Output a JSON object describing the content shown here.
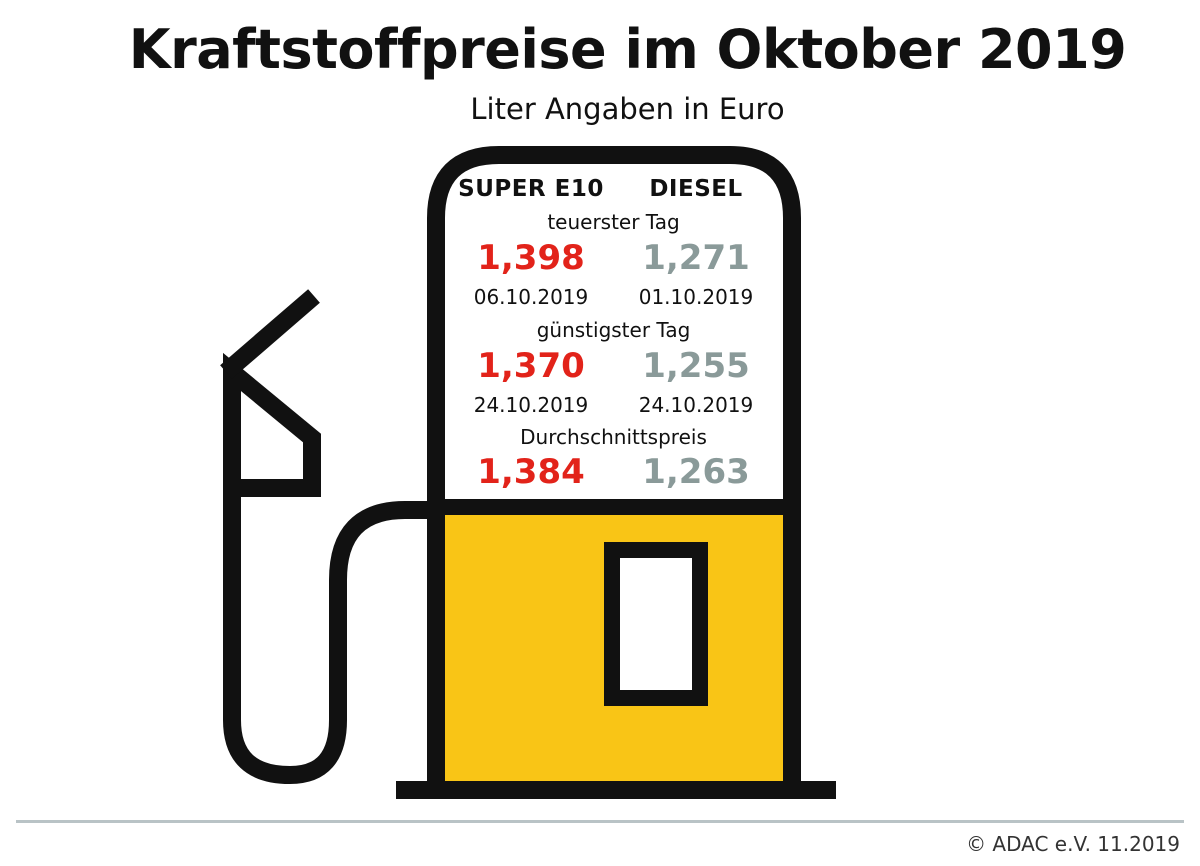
{
  "title": "Kraftstoffpreise im Oktober 2019",
  "subtitle": "Liter Angaben in Euro",
  "columns": {
    "left": "SUPER E10",
    "right": "DIESEL"
  },
  "sections": {
    "expensive": {
      "label": "teuerster Tag",
      "super_price": "1,398",
      "super_date": "06.10.2019",
      "diesel_price": "1,271",
      "diesel_date": "01.10.2019"
    },
    "cheap": {
      "label": "günstigster Tag",
      "super_price": "1,370",
      "super_date": "24.10.2019",
      "diesel_price": "1,255",
      "diesel_date": "24.10.2019"
    },
    "average": {
      "label": "Durchschnittspreis",
      "super_price": "1,384",
      "diesel_price": "1,263"
    }
  },
  "credit": "© ADAC e.V.  11.2019",
  "colors": {
    "super": "#e2231a",
    "diesel": "#8a9a99",
    "pump_body": "#f9c516",
    "outline": "#111111",
    "rule": "#b9c3c6"
  },
  "icons": {
    "pump": "fuel-pump-icon"
  }
}
